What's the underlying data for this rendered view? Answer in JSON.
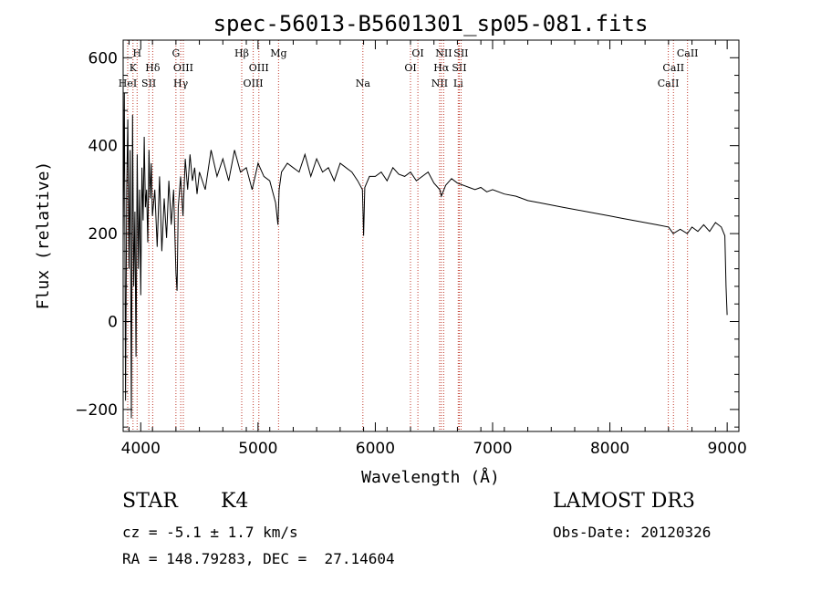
{
  "chart_data": {
    "type": "line",
    "title": "spec-56013-B5601301_sp05-081.fits",
    "xlabel": "Wavelength (Å)",
    "ylabel": "Flux (relative)",
    "xlim": [
      3850,
      9100
    ],
    "ylim": [
      -250,
      640
    ],
    "xticks": [
      4000,
      5000,
      6000,
      7000,
      8000,
      9000
    ],
    "yticks": [
      -200,
      0,
      200,
      400,
      600
    ],
    "series": [
      {
        "name": "flux",
        "x": [
          3850,
          3860,
          3870,
          3880,
          3890,
          3900,
          3910,
          3920,
          3930,
          3940,
          3950,
          3960,
          3970,
          3980,
          3990,
          4000,
          4010,
          4020,
          4030,
          4040,
          4050,
          4060,
          4070,
          4080,
          4090,
          4100,
          4120,
          4140,
          4160,
          4180,
          4200,
          4220,
          4240,
          4260,
          4280,
          4300,
          4310,
          4320,
          4340,
          4360,
          4380,
          4400,
          4420,
          4440,
          4460,
          4480,
          4500,
          4550,
          4600,
          4650,
          4700,
          4750,
          4800,
          4850,
          4900,
          4950,
          5000,
          5050,
          5100,
          5150,
          5170,
          5180,
          5200,
          5250,
          5300,
          5350,
          5400,
          5450,
          5500,
          5550,
          5600,
          5650,
          5700,
          5750,
          5800,
          5850,
          5890,
          5900,
          5910,
          5950,
          6000,
          6050,
          6100,
          6150,
          6200,
          6250,
          6300,
          6350,
          6400,
          6450,
          6500,
          6550,
          6563,
          6600,
          6650,
          6700,
          6750,
          6800,
          6850,
          6900,
          6950,
          7000,
          7100,
          7200,
          7300,
          7400,
          7500,
          7600,
          7700,
          7800,
          7900,
          8000,
          8100,
          8200,
          8300,
          8400,
          8500,
          8540,
          8600,
          8660,
          8700,
          8750,
          8800,
          8850,
          8900,
          8950,
          8980,
          8990,
          9000
        ],
        "values": [
          180,
          520,
          -180,
          300,
          460,
          120,
          390,
          -220,
          470,
          80,
          250,
          -80,
          380,
          120,
          300,
          60,
          350,
          230,
          420,
          260,
          300,
          180,
          390,
          280,
          360,
          240,
          300,
          170,
          330,
          160,
          280,
          190,
          320,
          220,
          300,
          110,
          70,
          260,
          330,
          240,
          370,
          300,
          380,
          320,
          350,
          290,
          340,
          300,
          390,
          330,
          370,
          320,
          390,
          340,
          350,
          300,
          360,
          330,
          320,
          270,
          220,
          300,
          340,
          360,
          350,
          340,
          380,
          330,
          370,
          340,
          350,
          320,
          360,
          350,
          340,
          320,
          300,
          195,
          305,
          330,
          330,
          340,
          320,
          350,
          335,
          330,
          340,
          320,
          330,
          340,
          315,
          300,
          285,
          310,
          325,
          315,
          310,
          305,
          300,
          305,
          295,
          300,
          290,
          285,
          275,
          270,
          265,
          260,
          255,
          250,
          245,
          240,
          235,
          230,
          225,
          220,
          215,
          200,
          210,
          200,
          215,
          205,
          220,
          205,
          225,
          215,
          195,
          80,
          15
        ]
      }
    ],
    "line_markers": [
      {
        "name": "HeI",
        "wavelength": 3889,
        "row": 3
      },
      {
        "name": "K",
        "wavelength": 3934,
        "row": 2
      },
      {
        "name": "H",
        "wavelength": 3969,
        "row": 1
      },
      {
        "name": "SII",
        "wavelength": 4069,
        "row": 3
      },
      {
        "name": "Hδ",
        "wavelength": 4102,
        "row": 2
      },
      {
        "name": "G",
        "wavelength": 4300,
        "row": 1
      },
      {
        "name": "Hγ",
        "wavelength": 4341,
        "row": 3
      },
      {
        "name": "OIII",
        "wavelength": 4363,
        "row": 2
      },
      {
        "name": "Hβ",
        "wavelength": 4861,
        "row": 1
      },
      {
        "name": "OIII",
        "wavelength": 4959,
        "row": 3
      },
      {
        "name": "OIII",
        "wavelength": 5007,
        "row": 2
      },
      {
        "name": "Mg",
        "wavelength": 5175,
        "row": 1
      },
      {
        "name": "Na",
        "wavelength": 5894,
        "row": 3
      },
      {
        "name": "OI",
        "wavelength": 6300,
        "row": 2
      },
      {
        "name": "OI",
        "wavelength": 6363,
        "row": 1
      },
      {
        "name": "NII",
        "wavelength": 6548,
        "row": 3
      },
      {
        "name": "Hα",
        "wavelength": 6563,
        "row": 2
      },
      {
        "name": "NII",
        "wavelength": 6583,
        "row": 1
      },
      {
        "name": "Li",
        "wavelength": 6707,
        "row": 3
      },
      {
        "name": "SII",
        "wavelength": 6716,
        "row": 2
      },
      {
        "name": "SII",
        "wavelength": 6731,
        "row": 1
      },
      {
        "name": "CaII",
        "wavelength": 8498,
        "row": 3
      },
      {
        "name": "CaII",
        "wavelength": 8542,
        "row": 2
      },
      {
        "name": "CaII",
        "wavelength": 8662,
        "row": 1
      }
    ],
    "marker_color": "#c0392b"
  },
  "info": {
    "object_class": "STAR",
    "subclass": "K4",
    "cz": "cz = -5.1 ± 1.7 km/s",
    "radec": "RA = 148.79283, DEC =  27.14604",
    "survey": "LAMOST DR3",
    "obs_date": "Obs-Date: 20120326"
  }
}
